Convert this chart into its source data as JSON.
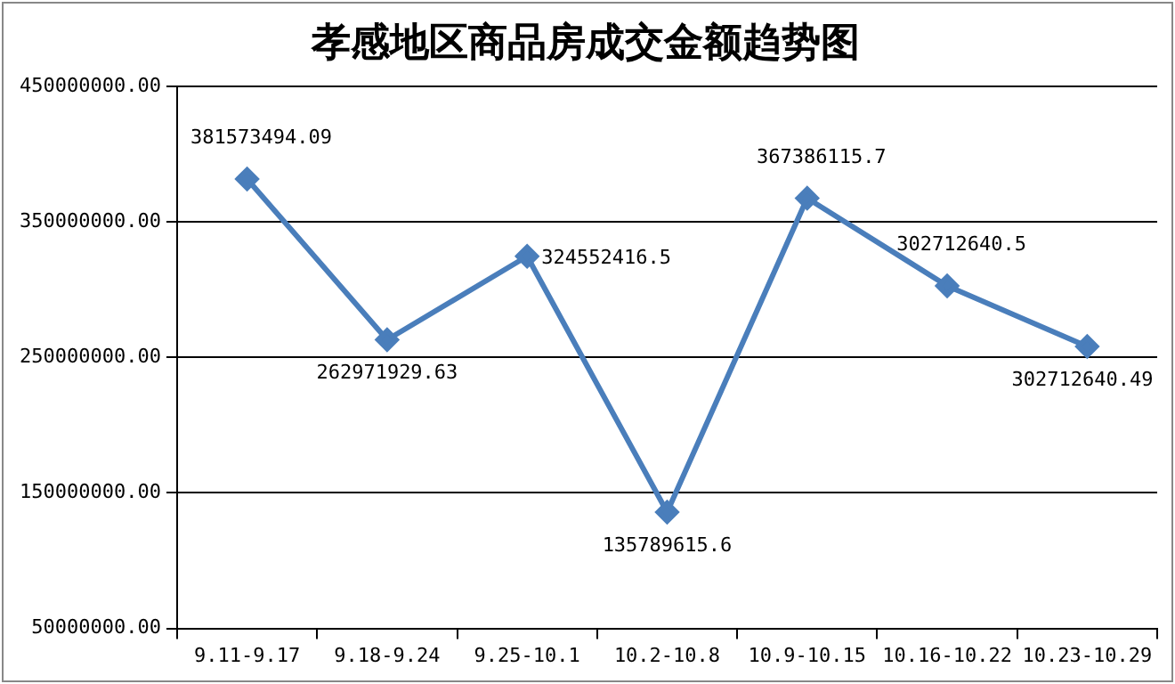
{
  "chart_data": {
    "type": "line",
    "title": "孝感地区商品房成交金额趋势图",
    "categories": [
      "9.11-9.17",
      "9.18-9.24",
      "9.25-10.1",
      "10.2-10.8",
      "10.9-10.15",
      "10.16-10.22",
      "10.23-10.29"
    ],
    "series": [
      {
        "color": "#4a7ebb",
        "values": [
          381573494.09,
          262971929.63,
          324552416.5,
          135789615.6,
          367386115.7,
          302712640.5,
          258000000
        ],
        "value_labels": [
          "381573494.09",
          "262971929.63",
          "324552416.5",
          "135789615.6",
          "367386115.7",
          "302712640.5",
          null
        ]
      }
    ],
    "annotations": [
      {
        "text": "302712640.49",
        "x": "10.23-10.29",
        "y": 258000000
      }
    ],
    "ylim": [
      50000000,
      450000000
    ],
    "yticks": [
      {
        "value": 50000000,
        "label": "50000000.00"
      },
      {
        "value": 150000000,
        "label": "150000000.00"
      },
      {
        "value": 250000000,
        "label": "250000000.00"
      },
      {
        "value": 350000000,
        "label": "350000000.00"
      },
      {
        "value": 450000000,
        "label": "450000000.00"
      }
    ],
    "grid": "y",
    "legend": false,
    "marker": "diamond",
    "line_style": "solid"
  }
}
